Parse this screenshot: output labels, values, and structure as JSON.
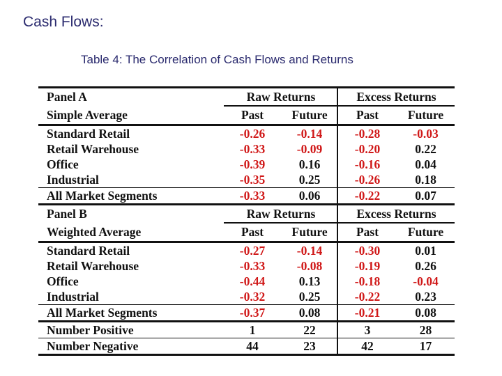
{
  "header": {
    "title": "Cash Flows:",
    "caption": "Table 4: The Correlation of Cash Flows and Returns"
  },
  "colors": {
    "negative": "#d01818",
    "text": "#111111",
    "heading": "#2a2a6e"
  },
  "table": {
    "panelA": {
      "label": "Panel A",
      "sub_label": "Simple Average",
      "group1": "Raw Returns",
      "group2": "Excess Returns",
      "cols": [
        "Past",
        "Future",
        "Past",
        "Future"
      ],
      "rows": [
        {
          "label": "Standard Retail",
          "values": [
            "-0.26",
            "-0.14",
            "-0.28",
            "-0.03"
          ]
        },
        {
          "label": "Retail Warehouse",
          "values": [
            "-0.33",
            "-0.09",
            "-0.20",
            "0.22"
          ]
        },
        {
          "label": "Office",
          "values": [
            "-0.39",
            "0.16",
            "-0.16",
            "0.04"
          ]
        },
        {
          "label": "Industrial",
          "values": [
            "-0.35",
            "0.25",
            "-0.26",
            "0.18"
          ]
        }
      ],
      "total": {
        "label": "All Market Segments",
        "values": [
          "-0.33",
          "0.06",
          "-0.22",
          "0.07"
        ]
      }
    },
    "panelB": {
      "label": "Panel B",
      "sub_label": "Weighted Average",
      "group1": "Raw Returns",
      "group2": "Excess Returns",
      "cols": [
        "Past",
        "Future",
        "Past",
        "Future"
      ],
      "rows": [
        {
          "label": "Standard Retail",
          "values": [
            "-0.27",
            "-0.14",
            "-0.30",
            "0.01"
          ]
        },
        {
          "label": "Retail Warehouse",
          "values": [
            "-0.33",
            "-0.08",
            "-0.19",
            "0.26"
          ]
        },
        {
          "label": "Office",
          "values": [
            "-0.44",
            "0.13",
            "-0.18",
            "-0.04"
          ]
        },
        {
          "label": "Industrial",
          "values": [
            "-0.32",
            "0.25",
            "-0.22",
            "0.23"
          ]
        }
      ],
      "total": {
        "label": "All Market Segments",
        "values": [
          "-0.37",
          "0.08",
          "-0.21",
          "0.08"
        ]
      }
    },
    "counts": [
      {
        "label": "Number Positive",
        "values": [
          "1",
          "22",
          "3",
          "28"
        ]
      },
      {
        "label": "Number Negative",
        "values": [
          "44",
          "23",
          "42",
          "17"
        ]
      }
    ]
  }
}
